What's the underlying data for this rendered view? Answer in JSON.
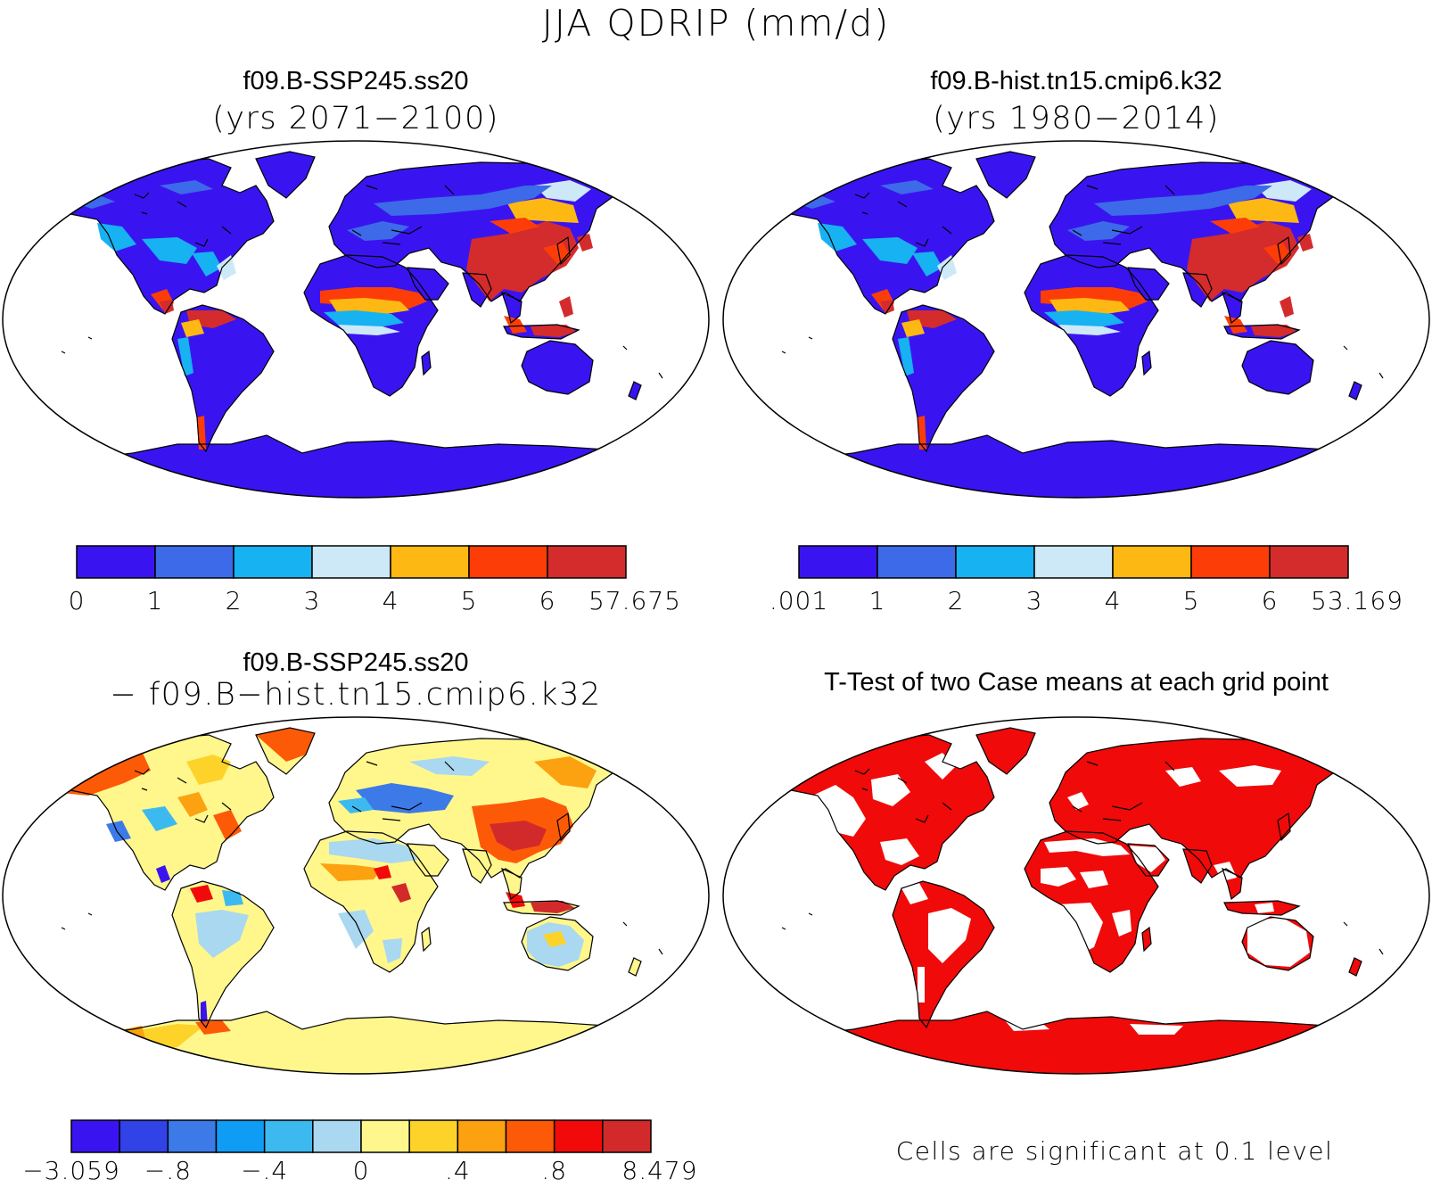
{
  "figure": {
    "title": "JJA QDRIP (mm/d)"
  },
  "panels": [
    {
      "id": "case1",
      "title": "f09.B-SSP245.ss20",
      "subtitle": "(yrs 2071−2100)",
      "colorbar": {
        "colors": [
          "#3a14f0",
          "#3c6ae8",
          "#16b2f2",
          "#cde9f7",
          "#fdb813",
          "#fd3d08",
          "#d42c2c"
        ],
        "labels": [
          "0",
          "1",
          "2",
          "3",
          "4",
          "5",
          "6",
          "57.675"
        ]
      }
    },
    {
      "id": "case2",
      "title": "f09.B-hist.tn15.cmip6.k32",
      "subtitle": "(yrs 1980−2014)",
      "colorbar": {
        "colors": [
          "#3a14f0",
          "#3c6ae8",
          "#16b2f2",
          "#cde9f7",
          "#fdb813",
          "#fd3d08",
          "#d42c2c"
        ],
        "labels": [
          ".001",
          "1",
          "2",
          "3",
          "4",
          "5",
          "6",
          "53.169"
        ]
      }
    },
    {
      "id": "difference",
      "title": "f09.B-SSP245.ss20",
      "subtitle": "− f09.B−hist.tn15.cmip6.k32",
      "colorbar": {
        "colors": [
          "#3a14f0",
          "#3142e6",
          "#3c7ae8",
          "#0f9cf4",
          "#3cbaf0",
          "#a9d8f0",
          "#fff78c",
          "#fdd32a",
          "#fca10f",
          "#fd5a08",
          "#f20a0a",
          "#d22a2a"
        ],
        "labels": [
          "−3.059",
          "−.8",
          "−.4",
          "0",
          ".4",
          ".8",
          "8.479"
        ]
      }
    },
    {
      "id": "ttest",
      "title": "T-Test of two Case means at each grid point",
      "note": "Cells are significant at 0.1 level",
      "significant_color": "#f00a0a"
    }
  ]
}
